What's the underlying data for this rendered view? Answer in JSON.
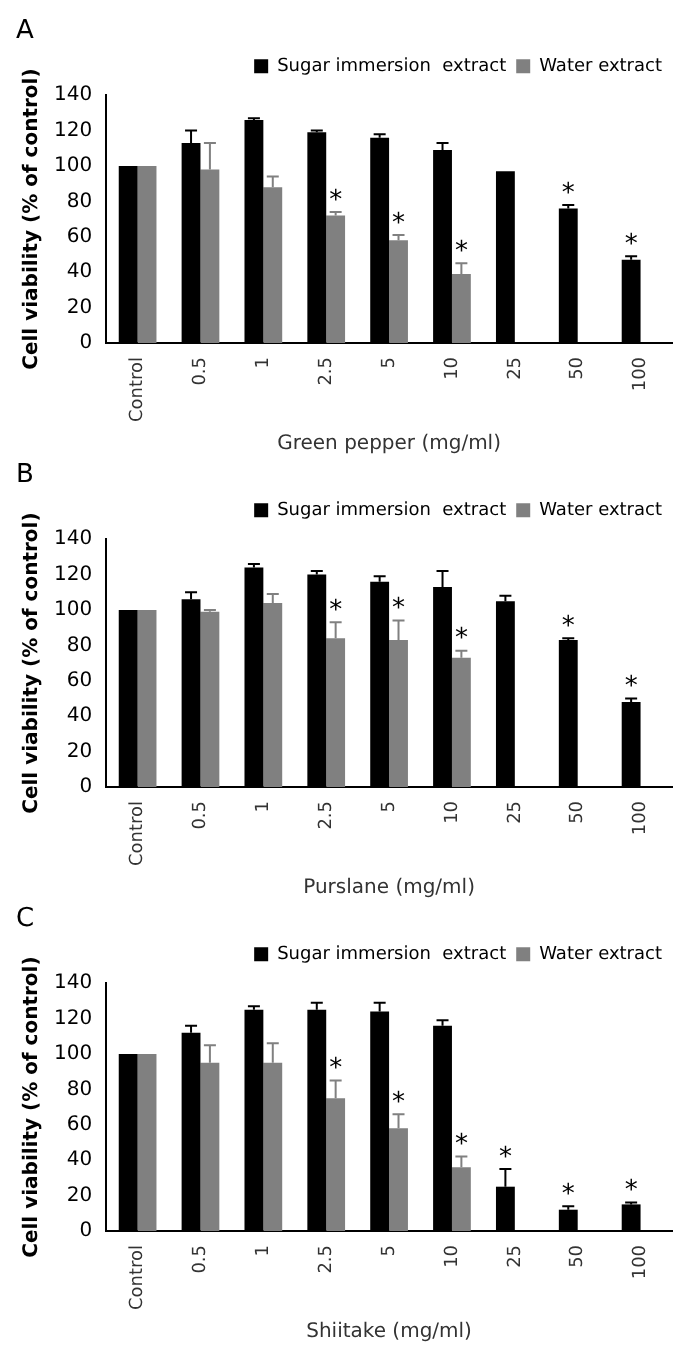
{
  "chart_data": [
    {
      "type": "bar",
      "title": "A",
      "ylabel": "Cell viability (% of control)",
      "xlabel": "Green pepper (mg/ml)",
      "categories": [
        "Control",
        "0.5",
        "1",
        "2.5",
        "5",
        "10",
        "25",
        "50",
        "100"
      ],
      "ylim": [
        0,
        140
      ],
      "yticks": [
        0,
        20,
        40,
        60,
        80,
        100,
        120,
        140
      ],
      "grid": false,
      "legend": "top right",
      "series": [
        {
          "name": "Sugar immersion  extract",
          "color": "#000000",
          "values": [
            100,
            113,
            126,
            119,
            116,
            109,
            97,
            76,
            47
          ],
          "errors": [
            null,
            7,
            1,
            1,
            2,
            4,
            null,
            2,
            2
          ]
        },
        {
          "name": "Water extract",
          "color": "#808080",
          "values": [
            100,
            98,
            88,
            72,
            58,
            39,
            null,
            null,
            null
          ],
          "errors": [
            null,
            15,
            6,
            2,
            3,
            6,
            null,
            null,
            null
          ]
        }
      ],
      "annotations": [
        {
          "text": "*",
          "x": "2.5",
          "y": 72
        },
        {
          "text": "*",
          "x": "5",
          "y": 58
        },
        {
          "text": "*",
          "x": "10",
          "y": 39
        },
        {
          "text": "*",
          "x": "50",
          "y": 76
        },
        {
          "text": "*",
          "x": "100",
          "y": 47
        }
      ]
    },
    {
      "type": "bar",
      "title": "B",
      "ylabel": "Cell viability (% of control)",
      "xlabel": "Purslane (mg/ml)",
      "categories": [
        "Control",
        "0.5",
        "1",
        "2.5",
        "5",
        "10",
        "25",
        "50",
        "100"
      ],
      "ylim": [
        0,
        140
      ],
      "yticks": [
        0,
        20,
        40,
        60,
        80,
        100,
        120,
        140
      ],
      "grid": false,
      "legend": "top right",
      "series": [
        {
          "name": "Sugar immersion  extract",
          "color": "#000000",
          "values": [
            100,
            106,
            124,
            120,
            116,
            113,
            105,
            83,
            48
          ],
          "errors": [
            null,
            4,
            2,
            2,
            3,
            9,
            3,
            1,
            2
          ]
        },
        {
          "name": "Water extract",
          "color": "#808080",
          "values": [
            100,
            99,
            104,
            84,
            83,
            73,
            null,
            null,
            null
          ],
          "errors": [
            null,
            1,
            5,
            9,
            11,
            4,
            null,
            null,
            null
          ]
        }
      ],
      "annotations": [
        {
          "text": "*",
          "x": "2.5",
          "y": 84
        },
        {
          "text": "*",
          "x": "5",
          "y": 83
        },
        {
          "text": "*",
          "x": "10",
          "y": 73
        },
        {
          "text": "*",
          "x": "50",
          "y": 83
        },
        {
          "text": "*",
          "x": "100",
          "y": 48
        }
      ]
    },
    {
      "type": "bar",
      "title": "C",
      "ylabel": "Cell viability (% of control)",
      "xlabel": "Shiitake (mg/ml)",
      "categories": [
        "Control",
        "0.5",
        "1",
        "2.5",
        "5",
        "10",
        "25",
        "50",
        "100"
      ],
      "ylim": [
        0,
        140
      ],
      "yticks": [
        0,
        20,
        40,
        60,
        80,
        100,
        120,
        140
      ],
      "grid": false,
      "legend": "top right",
      "series": [
        {
          "name": "Sugar immersion  extract",
          "color": "#000000",
          "values": [
            100,
            112,
            125,
            125,
            124,
            116,
            25,
            12,
            15
          ],
          "errors": [
            null,
            4,
            2,
            4,
            5,
            3,
            10,
            2,
            1
          ]
        },
        {
          "name": "Water extract",
          "color": "#808080",
          "values": [
            100,
            95,
            95,
            75,
            58,
            36,
            null,
            null,
            null
          ],
          "errors": [
            null,
            10,
            11,
            10,
            8,
            6,
            null,
            null,
            null
          ]
        }
      ],
      "annotations": [
        {
          "text": "*",
          "x": "2.5",
          "y": 75
        },
        {
          "text": "*",
          "x": "5",
          "y": 58
        },
        {
          "text": "*",
          "x": "10",
          "y": 36
        },
        {
          "text": "*",
          "x": "25",
          "y": 25
        },
        {
          "text": "*",
          "x": "50",
          "y": 12
        },
        {
          "text": "*",
          "x": "100",
          "y": 15
        }
      ]
    }
  ]
}
